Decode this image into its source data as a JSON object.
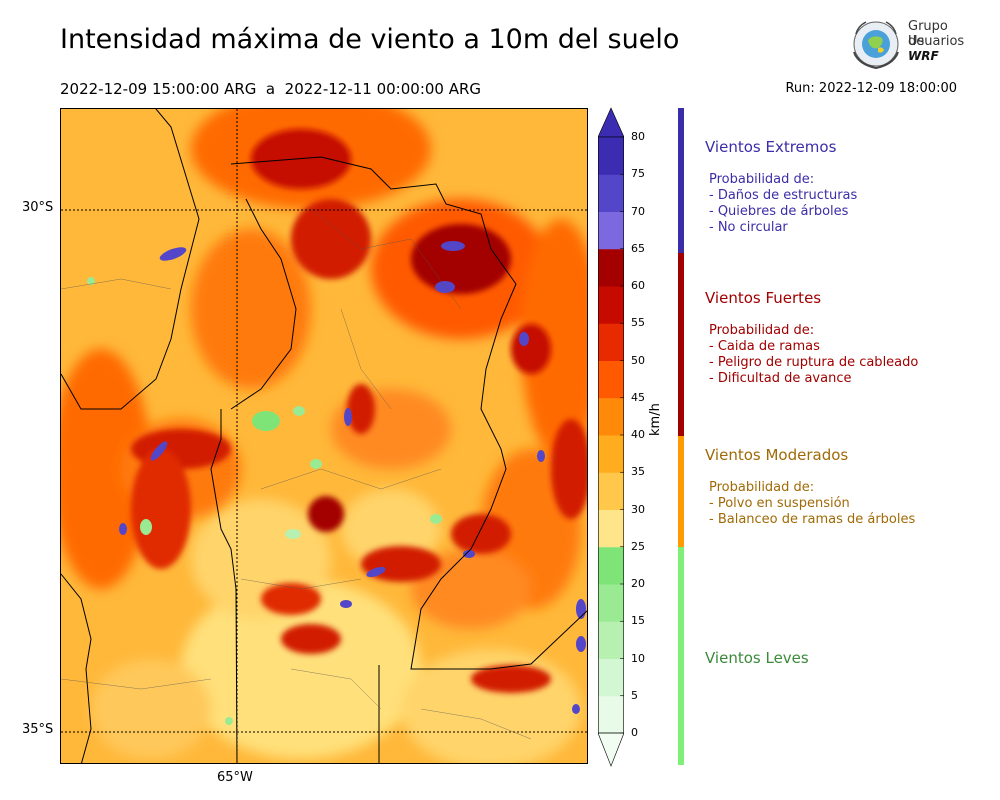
{
  "header": {
    "title": "Intensidad máxima de viento a 10m del suelo",
    "period": "2022-12-09 15:00:00 ARG  a  2022-12-11 00:00:00 ARG",
    "run": "Run: 2022-12-09 18:00:00"
  },
  "logo": {
    "line1": "Grupo de",
    "line2": "Usuarios",
    "line3": "WRF"
  },
  "map": {
    "lat_labels": [
      "30°S",
      "35°S"
    ],
    "lon_labels": [
      "65°W"
    ]
  },
  "colorbar": {
    "unit": "km/h",
    "ticks": [
      "0",
      "5",
      "10",
      "15",
      "20",
      "25",
      "30",
      "35",
      "40",
      "45",
      "50",
      "55",
      "60",
      "65",
      "70",
      "75",
      "80"
    ],
    "colors": [
      "#e8fbe8",
      "#d2f7d2",
      "#b7f0b1",
      "#9aea93",
      "#7fe477",
      "#ffe58a",
      "#ffc84a",
      "#ffad1f",
      "#ff8a0a",
      "#ff5a00",
      "#e82a00",
      "#c70a00",
      "#a50000",
      "#7c69df",
      "#5446c9",
      "#3b2cb2"
    ],
    "extend_top": "#3b2cb2",
    "extend_bottom": "#f2fdf2"
  },
  "categories": [
    {
      "title": "Vientos Extremos",
      "color": "#3a2ea8",
      "lines": [
        "Probabilidad de:",
        "- Daños de estructuras",
        "- Quiebres de árboles",
        "- No circular"
      ]
    },
    {
      "title": "Vientos Fuertes",
      "color": "#a00000",
      "lines": [
        "Probabilidad de:",
        "- Caida de ramas",
        "- Peligro de ruptura de cableado",
        "- Dificultad de avance"
      ]
    },
    {
      "title": "Vientos Moderados",
      "color": "#a06a06",
      "lines": [
        "Probabilidad de:",
        "- Polvo en suspensión",
        "- Balanceo de ramas de árboles"
      ]
    },
    {
      "title": "Vientos Leves",
      "color": "#3a8a3a",
      "lines": []
    }
  ],
  "category_bar_colors": [
    "#3a2ea8",
    "#a00000",
    "#ff9a00",
    "#7ef078"
  ]
}
